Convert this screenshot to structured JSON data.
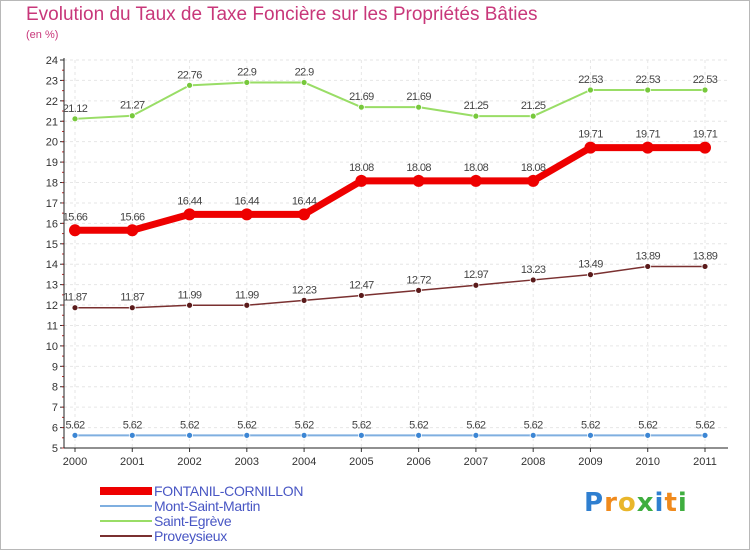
{
  "title": "Evolution du Taux de Taxe Foncière sur les Propriétés Bâties",
  "subtitle": "(en %)",
  "brand": {
    "letters": [
      {
        "char": "P",
        "color": "#2f7fd0"
      },
      {
        "char": "r",
        "color": "#f08a1c"
      },
      {
        "char": "o",
        "color": "#e9b62a"
      },
      {
        "char": "x",
        "color": "#3fae3f"
      },
      {
        "char": "i",
        "color": "#2f7fd0"
      },
      {
        "char": "t",
        "color": "#f08a1c"
      },
      {
        "char": "i",
        "color": "#3fae3f"
      }
    ]
  },
  "chart_data": {
    "type": "line",
    "title": "Evolution du Taux de Taxe Foncière sur les Propriétés Bâties",
    "ylabel": "(en %)",
    "xlabel": "",
    "ylim": [
      5,
      24
    ],
    "yticks": [
      5,
      6,
      7,
      8,
      9,
      10,
      11,
      12,
      13,
      14,
      15,
      16,
      17,
      18,
      19,
      20,
      21,
      22,
      23,
      24
    ],
    "grid": true,
    "legend_position": "bottom-left",
    "categories": [
      "2000",
      "2001",
      "2002",
      "2003",
      "2004",
      "2005",
      "2006",
      "2007",
      "2008",
      "2009",
      "2010",
      "2011"
    ],
    "series": [
      {
        "name": "FONTANIL-CORNILLON",
        "color": "#ee0000",
        "marker_color": "#ee0000",
        "line_width": 7,
        "marker_r": 6,
        "values": [
          15.66,
          15.66,
          16.44,
          16.44,
          16.44,
          18.08,
          18.08,
          18.08,
          18.08,
          19.71,
          19.71,
          19.71
        ],
        "labels": [
          "15.66",
          "15.66",
          "16.44",
          "16.44",
          "16.44",
          "18.08",
          "18.08",
          "18.08",
          "18.08",
          "19.71",
          "19.71",
          "19.71"
        ]
      },
      {
        "name": "Mont-Saint-Martin",
        "color": "#7fafe0",
        "marker_color": "#3c86d4",
        "line_width": 2,
        "marker_r": 3,
        "values": [
          5.62,
          5.62,
          5.62,
          5.62,
          5.62,
          5.62,
          5.62,
          5.62,
          5.62,
          5.62,
          5.62,
          5.62
        ],
        "labels": [
          "5.62",
          "5.62",
          "5.62",
          "5.62",
          "5.62",
          "5.62",
          "5.62",
          "5.62",
          "5.62",
          "5.62",
          "5.62",
          "5.62"
        ]
      },
      {
        "name": "Saint-Egrève",
        "color": "#99dd66",
        "marker_color": "#77c83c",
        "line_width": 2,
        "marker_r": 3,
        "values": [
          21.12,
          21.27,
          22.76,
          22.9,
          22.9,
          21.69,
          21.69,
          21.25,
          21.25,
          22.53,
          22.53,
          22.53
        ],
        "labels": [
          "21.12",
          "21.27",
          "22.76",
          "22.9",
          "22.9",
          "21.69",
          "21.69",
          "21.25",
          "21.25",
          "22.53",
          "22.53",
          "22.53"
        ]
      },
      {
        "name": "Proveysieux",
        "color": "#7a3030",
        "marker_color": "#5a1a1a",
        "line_width": 1.5,
        "marker_r": 3,
        "values": [
          11.87,
          11.87,
          11.99,
          11.99,
          12.23,
          12.47,
          12.72,
          12.97,
          13.23,
          13.49,
          13.89,
          13.89
        ],
        "labels": [
          "11.87",
          "11.87",
          "11.99",
          "11.99",
          "12.23",
          "12.47",
          "12.72",
          "12.97",
          "13.23",
          "13.49",
          "13.89",
          "13.89"
        ]
      }
    ]
  }
}
